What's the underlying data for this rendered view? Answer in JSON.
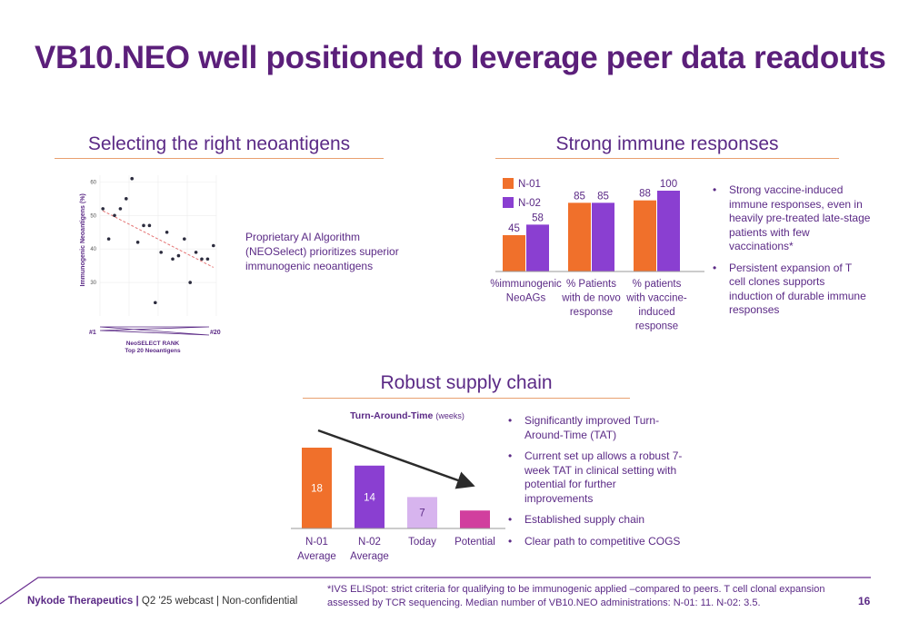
{
  "title": "VB10.NEO well positioned to leverage peer data readouts",
  "sections": {
    "neoantigens": {
      "heading": "Selecting the right neoantigens",
      "description": "Proprietary AI Algorithm (NEOSelect) prioritizes superior immunogenic neoantigens"
    },
    "immune": {
      "heading": "Strong immune responses",
      "bullets": [
        "Strong vaccine-induced immune responses, even in heavily pre-treated late-stage patients with few vaccinations*",
        "Persistent expansion of T cell clones supports induction of durable immune responses"
      ]
    },
    "supply": {
      "heading": "Robust supply chain",
      "bullets": [
        "Significantly improved Turn-Around-Time (TAT)",
        "Current set up allows a robust 7-week TAT in clinical setting with potential for further improvements",
        "Established supply chain",
        "Clear path to competitive COGS"
      ]
    }
  },
  "footer": {
    "company": "Nykode Therapeutics |",
    "meta": " Q2 '25 webcast | Non-confidential",
    "footnote": "*IVS ELISpot: strict criteria for qualifying to be immunogenic applied –compared to peers. T cell clonal expansion assessed by TCR sequencing.  Median number of VB10.NEO administrations: N-01: 11. N-02: 3.5.",
    "page": "16"
  },
  "chart_data": [
    {
      "type": "scatter",
      "ylabel": "Immunogenic Neoantigens (%)",
      "xlabel": "NeoSELECT RANK",
      "xlabel2": "Top 20 Neoantigens",
      "x_start_label": "#1",
      "x_end_label": "#20",
      "yticks": [
        "60",
        "50",
        "40",
        "30"
      ],
      "ylim": [
        20,
        62
      ],
      "xlim": [
        0.5,
        20.5
      ],
      "trendline": "dashed",
      "points": [
        {
          "x": 1,
          "y": 52
        },
        {
          "x": 2,
          "y": 43
        },
        {
          "x": 3,
          "y": 50
        },
        {
          "x": 4,
          "y": 52
        },
        {
          "x": 5,
          "y": 55
        },
        {
          "x": 6,
          "y": 61
        },
        {
          "x": 7,
          "y": 42
        },
        {
          "x": 8,
          "y": 47
        },
        {
          "x": 9,
          "y": 47
        },
        {
          "x": 10,
          "y": 24
        },
        {
          "x": 11,
          "y": 39
        },
        {
          "x": 12,
          "y": 45
        },
        {
          "x": 13,
          "y": 37
        },
        {
          "x": 14,
          "y": 38
        },
        {
          "x": 15,
          "y": 43
        },
        {
          "x": 16,
          "y": 30
        },
        {
          "x": 17,
          "y": 39
        },
        {
          "x": 18,
          "y": 37
        },
        {
          "x": 19,
          "y": 37
        },
        {
          "x": 20,
          "y": 41
        }
      ],
      "colors": {
        "point": "#2c2c3e",
        "trend": "#e57373",
        "axis": "#5b2a86"
      }
    },
    {
      "type": "bar",
      "categories": [
        [
          "%immunogenic",
          "NeoAGs"
        ],
        [
          "% Patients",
          "with de novo",
          "response"
        ],
        [
          "% patients",
          "with vaccine-",
          "induced",
          "response"
        ]
      ],
      "series": [
        {
          "name": "N-01",
          "values": [
            45,
            85,
            88
          ],
          "color": "#f0702b"
        },
        {
          "name": "N-02",
          "values": [
            58,
            85,
            100
          ],
          "color": "#8a3fd1"
        }
      ],
      "ylim": [
        0,
        100
      ],
      "legend": "top-left"
    },
    {
      "type": "bar",
      "title": "Turn-Around-Time",
      "title_unit": "(weeks)",
      "categories": [
        [
          "N-01",
          "Average"
        ],
        [
          "N-02",
          "Average"
        ],
        [
          "Today"
        ],
        [
          "Potential"
        ]
      ],
      "values": [
        18,
        14,
        7,
        4
      ],
      "labels": [
        "18",
        "14",
        "7",
        ""
      ],
      "colors": [
        "#f0702b",
        "#8a3fd1",
        "#d7b4ee",
        "#d13f9e"
      ],
      "label_colors": [
        "#ffffff",
        "#ffffff",
        "#5b2a86",
        "#ffffff"
      ],
      "ylim": [
        0,
        18
      ],
      "trend_arrow": "down"
    }
  ]
}
